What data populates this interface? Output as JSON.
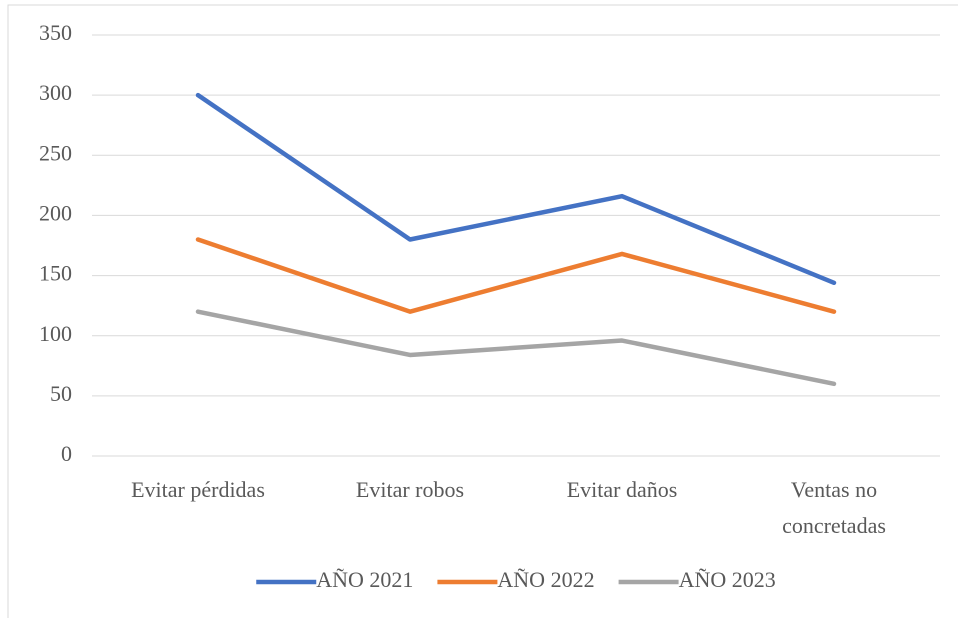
{
  "chart_data": {
    "type": "line",
    "categories": [
      "Evitar pérdidas",
      "Evitar robos",
      "Evitar daños",
      "Ventas no concretadas"
    ],
    "series": [
      {
        "name": "AÑO 2021",
        "color": "#4472c4",
        "values": [
          300,
          180,
          216,
          144
        ]
      },
      {
        "name": "AÑO 2022",
        "color": "#ed7d31",
        "values": [
          180,
          120,
          168,
          120
        ]
      },
      {
        "name": "AÑO 2023",
        "color": "#a5a5a5",
        "values": [
          120,
          84,
          96,
          60
        ]
      }
    ],
    "ylim": [
      0,
      350
    ],
    "yticks": [
      0,
      50,
      100,
      150,
      200,
      250,
      300,
      350
    ],
    "grid": true,
    "legend": "bottom"
  }
}
